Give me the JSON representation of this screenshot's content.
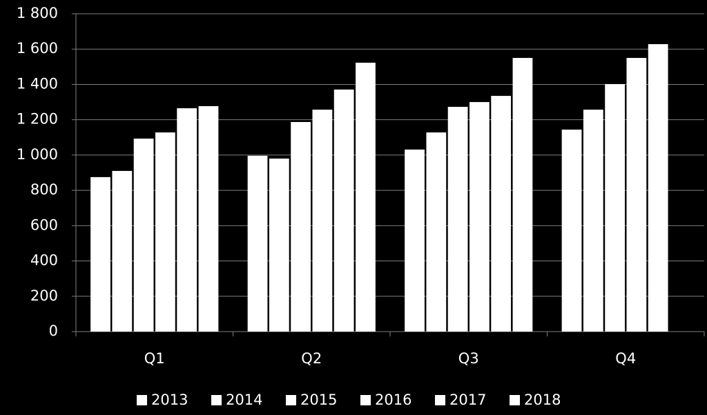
{
  "chart_data": {
    "type": "bar",
    "categories": [
      "Q1",
      "Q2",
      "Q3",
      "Q4"
    ],
    "series": [
      {
        "name": "2013",
        "color": "#ffffff",
        "values": [
          875,
          996,
          1031,
          1144
        ]
      },
      {
        "name": "2014",
        "color": "#ffffff",
        "values": [
          910,
          980,
          1128,
          1257
        ]
      },
      {
        "name": "2015",
        "color": "#ffffff",
        "values": [
          1093,
          1187,
          1273,
          1402
        ]
      },
      {
        "name": "2016",
        "color": "#ffffff",
        "values": [
          1128,
          1257,
          1300,
          1550
        ]
      },
      {
        "name": "2017",
        "color": "#ffffff",
        "values": [
          1265,
          1371,
          1335,
          1628
        ]
      },
      {
        "name": "2018",
        "color": "#ffffff",
        "values": [
          1277,
          1523,
          1550,
          null
        ]
      }
    ],
    "ylim": [
      0,
      1800
    ],
    "yticks": [
      0,
      200,
      400,
      600,
      800,
      {
        "value": 1000,
        "label": "1 000"
      },
      {
        "value": 1200,
        "label": "1 200"
      },
      {
        "value": 1400,
        "label": "1 400"
      },
      {
        "value": 1600,
        "label": "1 600"
      },
      {
        "value": 1800,
        "label": "1 800"
      }
    ],
    "grid": true,
    "legend": "bottom"
  }
}
